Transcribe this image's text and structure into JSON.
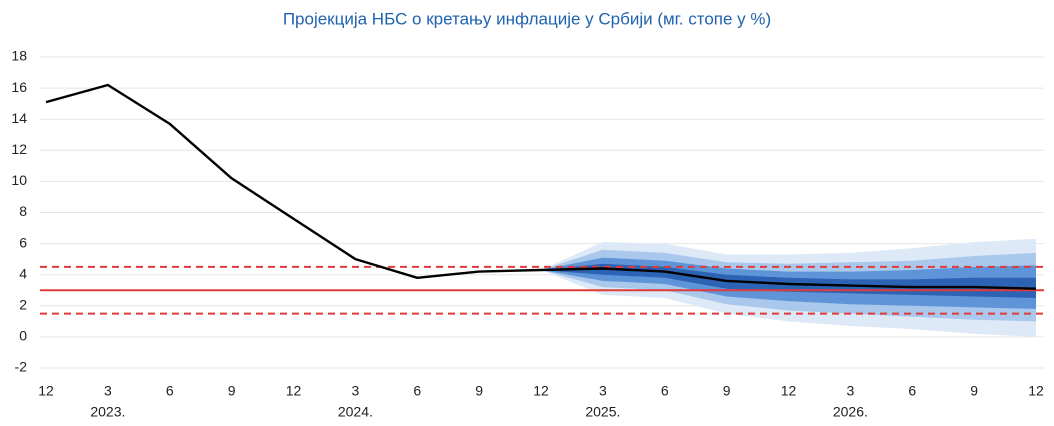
{
  "chart_data": {
    "type": "fan",
    "title": "Пројекција НБС о кретању инфлације у Србији (мг. стопе у %)",
    "categories": [
      "12",
      "3",
      "6",
      "9",
      "12",
      "3",
      "6",
      "9",
      "12",
      "3",
      "6",
      "9",
      "12",
      "3",
      "6",
      "9",
      "12"
    ],
    "year_labels": [
      "2023.",
      "2024.",
      "2025.",
      "2026."
    ],
    "ylim": [
      -2,
      18
    ],
    "yticks": [
      -2,
      0,
      2,
      4,
      6,
      8,
      10,
      12,
      14,
      16,
      18
    ],
    "grid": true,
    "series": [
      {
        "color": "#000000",
        "values": [
          15.1,
          16.2,
          13.7,
          10.2,
          7.6,
          5.0,
          3.8,
          4.2,
          4.3,
          4.4,
          4.2,
          3.6,
          3.4,
          3.3,
          3.2,
          3.2,
          3.1
        ]
      }
    ],
    "fan": [
      {
        "color": "#dde9f7",
        "lower": [
          null,
          null,
          null,
          null,
          null,
          null,
          null,
          null,
          4.3,
          2.7,
          2.5,
          1.5,
          1.0,
          0.7,
          0.5,
          0.2,
          0.0
        ],
        "upper": [
          null,
          null,
          null,
          null,
          null,
          null,
          null,
          null,
          4.3,
          6.1,
          6.0,
          5.3,
          5.3,
          5.4,
          5.7,
          6.1,
          6.3
        ]
      },
      {
        "color": "#a9c8ec",
        "lower": [
          null,
          null,
          null,
          null,
          null,
          null,
          null,
          null,
          4.3,
          3.2,
          3.0,
          2.1,
          1.7,
          1.5,
          1.3,
          1.1,
          1.0
        ],
        "upper": [
          null,
          null,
          null,
          null,
          null,
          null,
          null,
          null,
          4.3,
          5.6,
          5.4,
          4.8,
          4.7,
          4.8,
          4.9,
          5.2,
          5.4
        ]
      },
      {
        "color": "#5f95d8",
        "lower": [
          null,
          null,
          null,
          null,
          null,
          null,
          null,
          null,
          4.3,
          3.6,
          3.4,
          2.6,
          2.3,
          2.1,
          2.0,
          1.9,
          1.8
        ],
        "upper": [
          null,
          null,
          null,
          null,
          null,
          null,
          null,
          null,
          4.3,
          5.1,
          4.9,
          4.4,
          4.2,
          4.2,
          4.3,
          4.5,
          4.6
        ]
      },
      {
        "color": "#2c63b5",
        "lower": [
          null,
          null,
          null,
          null,
          null,
          null,
          null,
          null,
          4.3,
          4.0,
          3.8,
          3.1,
          2.9,
          2.8,
          2.7,
          2.6,
          2.5
        ],
        "upper": [
          null,
          null,
          null,
          null,
          null,
          null,
          null,
          null,
          4.3,
          4.7,
          4.5,
          4.0,
          3.8,
          3.7,
          3.7,
          3.8,
          3.8
        ]
      }
    ],
    "reference_lines": [
      {
        "value": 4.5,
        "style": "dashed",
        "color": "#e03a3a"
      },
      {
        "value": 3,
        "style": "solid",
        "color": "#e03a3a"
      },
      {
        "value": 1.5,
        "style": "dashed",
        "color": "#e03a3a"
      }
    ]
  }
}
